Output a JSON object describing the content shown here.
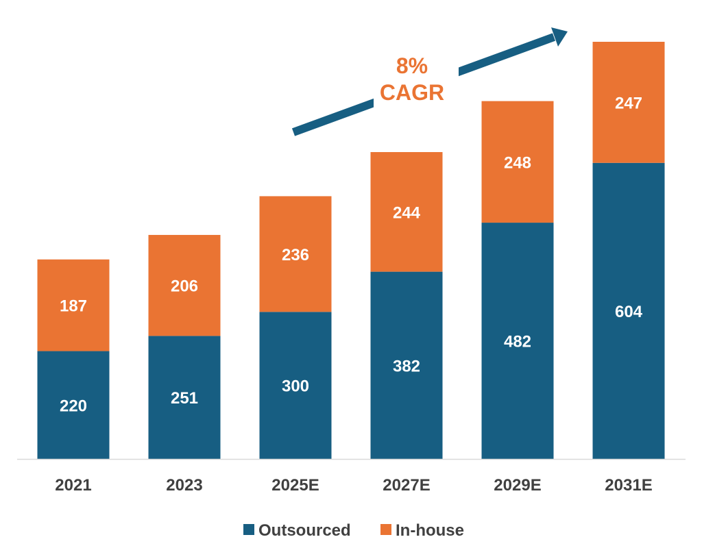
{
  "chart_data": {
    "type": "bar",
    "stacked": true,
    "categories": [
      "2021",
      "2023",
      "2025E",
      "2027E",
      "2029E",
      "2031E"
    ],
    "series": [
      {
        "name": "Outsourced",
        "color": "#175E82",
        "values": [
          220,
          251,
          300,
          382,
          482,
          604
        ]
      },
      {
        "name": "In-house",
        "color": "#EA7433",
        "values": [
          187,
          206,
          236,
          244,
          248,
          247
        ]
      }
    ],
    "ylim": [
      0,
      851
    ],
    "grid": false,
    "legend": "bottom-center",
    "annotation": {
      "line1": "8%",
      "line2": "CAGR",
      "color": "#EA7433",
      "arrow_color": "#175E82"
    },
    "axis_color": "#D9D9D9",
    "text_color": "#404040"
  }
}
